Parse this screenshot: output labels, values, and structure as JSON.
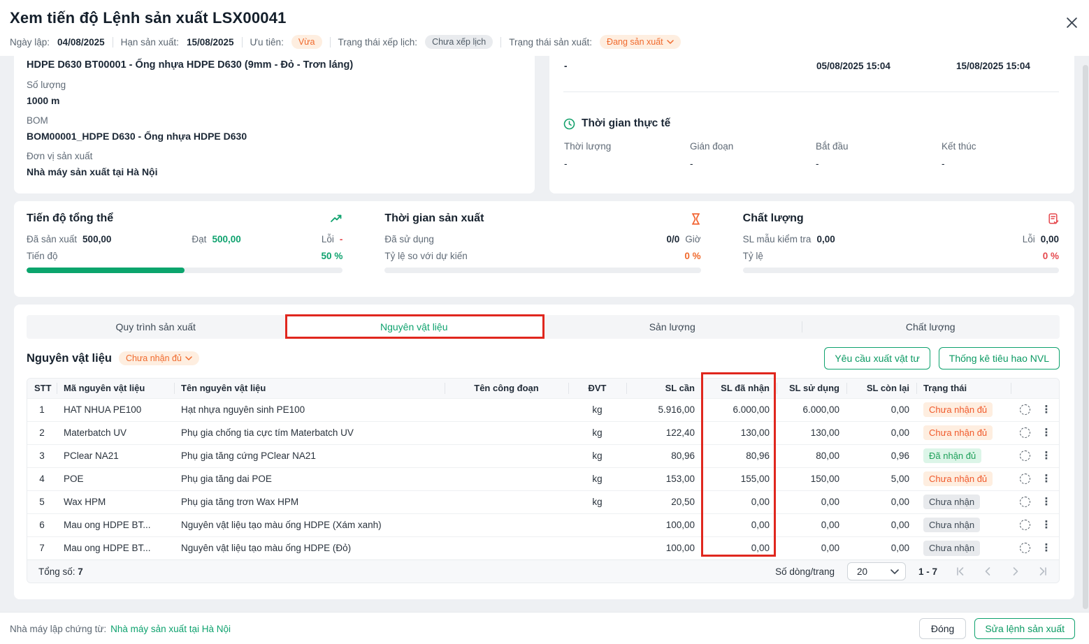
{
  "colors": {
    "accent_green": "#0ea26e",
    "accent_orange": "#f06a2d",
    "accent_red": "#e5484d",
    "annotation_red": "#e0271e",
    "progress_fill": "#0ba56d"
  },
  "header": {
    "title": "Xem tiến độ Lệnh sản xuất LSX00041",
    "meta": {
      "ngay_lap_label": "Ngày lập:",
      "ngay_lap_value": "04/08/2025",
      "han_san_xuat_label": "Hạn sản xuất:",
      "han_san_xuat_value": "15/08/2025",
      "uu_tien_label": "Ưu tiên:",
      "uu_tien_badge": "Vừa",
      "xep_lich_label": "Trạng thái xếp lịch:",
      "xep_lich_badge": "Chưa xếp lịch",
      "san_xuat_label": "Trạng thái sản xuất:",
      "san_xuat_badge": "Đang sản xuất"
    }
  },
  "product_card": {
    "product_line": "HDPE D630 BT00001 - Ống nhựa HDPE D630 (9mm - Đỏ - Trơn láng)",
    "so_luong_label": "Số lượng",
    "so_luong_value": "1000 m",
    "bom_label": "BOM",
    "bom_value": "BOM00001_HDPE D630 - Ống nhựa HDPE D630",
    "don_vi_label": "Đơn vị sản xuất",
    "don_vi_value": "Nhà máy sản xuất tại Hà Nội"
  },
  "time_card": {
    "top_dash": "-",
    "top_start": "05/08/2025 15:04",
    "top_end": "15/08/2025 15:04",
    "section_title": "Thời gian thực tế",
    "cols": [
      {
        "label": "Thời lượng",
        "value": "-"
      },
      {
        "label": "Gián đoạn",
        "value": "-"
      },
      {
        "label": "Bắt đầu",
        "value": "-"
      },
      {
        "label": "Kết thúc",
        "value": "-"
      }
    ]
  },
  "stats": {
    "progress": {
      "title": "Tiến độ tổng thể",
      "produced_label": "Đã sản xuất",
      "produced_value": "500,00",
      "dat_label": "Đạt",
      "dat_value": "500,00",
      "loi_label": "Lỗi",
      "loi_value": "-",
      "tien_do_label": "Tiến độ",
      "percent": "50 %",
      "percent_fill": 50
    },
    "time": {
      "title": "Thời gian sản xuất",
      "used_label": "Đã sử dụng",
      "used_value": "0/0",
      "used_unit": "Giờ",
      "ratio_label": "Tỷ lệ so với dự kiến",
      "percent": "0 %",
      "percent_fill": 0
    },
    "quality": {
      "title": "Chất lượng",
      "sample_label": "SL mẫu kiểm tra",
      "sample_value": "0,00",
      "loi_label": "Lỗi",
      "loi_value": "0,00",
      "ratio_label": "Tỷ lệ",
      "percent": "0 %",
      "percent_fill": 0
    }
  },
  "tabs": [
    {
      "label": "Quy trình sản xuất",
      "active": false
    },
    {
      "label": "Nguyên vật liệu",
      "active": true
    },
    {
      "label": "Sản lượng",
      "active": false
    },
    {
      "label": "Chất lượng",
      "active": false
    }
  ],
  "materials": {
    "heading": "Nguyên vật liệu",
    "heading_badge": "Chưa nhận đủ",
    "request_button": "Yêu cầu xuất vật tư",
    "stats_button": "Thống kê tiêu hao NVL",
    "table": {
      "headers": [
        "STT",
        "Mã nguyên vật liệu",
        "Tên nguyên vật liệu",
        "Tên công đoạn",
        "ĐVT",
        "SL cần",
        "SL đã nhận",
        "SL sử dụng",
        "SL còn lại",
        "Trạng thái"
      ],
      "rows": [
        {
          "stt": "1",
          "code": "HAT NHUA PE100",
          "name": "Hạt nhựa nguyên sinh PE100",
          "stage": "",
          "unit": "kg",
          "required": "5.916,00",
          "received": "6.000,00",
          "used": "6.000,00",
          "remaining": "0,00",
          "status": "Chưa nhận đủ",
          "status_type": "warning"
        },
        {
          "stt": "2",
          "code": "Materbatch UV",
          "name": "Phụ gia chống tia cực tím Materbatch UV",
          "stage": "",
          "unit": "kg",
          "required": "122,40",
          "received": "130,00",
          "used": "130,00",
          "remaining": "0,00",
          "status": "Chưa nhận đủ",
          "status_type": "warning"
        },
        {
          "stt": "3",
          "code": "PClear NA21",
          "name": "Phụ gia tăng cứng PClear NA21",
          "stage": "",
          "unit": "kg",
          "required": "80,96",
          "received": "80,96",
          "used": "80,00",
          "remaining": "0,96",
          "status": "Đã nhận đủ",
          "status_type": "success"
        },
        {
          "stt": "4",
          "code": "POE",
          "name": "Phụ gia tăng dai POE",
          "stage": "",
          "unit": "kg",
          "required": "153,00",
          "received": "155,00",
          "used": "150,00",
          "remaining": "5,00",
          "status": "Chưa nhận đủ",
          "status_type": "warning"
        },
        {
          "stt": "5",
          "code": "Wax HPM",
          "name": "Phụ gia tăng trơn Wax HPM",
          "stage": "",
          "unit": "kg",
          "required": "20,50",
          "received": "0,00",
          "used": "0,00",
          "remaining": "0,00",
          "status": "Chưa nhận",
          "status_type": "neutral"
        },
        {
          "stt": "6",
          "code": "Mau ong HDPE BT...",
          "name": "Nguyên vật liệu tạo màu ống HDPE (Xám xanh)",
          "stage": "",
          "unit": "",
          "required": "100,00",
          "received": "0,00",
          "used": "0,00",
          "remaining": "0,00",
          "status": "Chưa nhận",
          "status_type": "neutral"
        },
        {
          "stt": "7",
          "code": "Mau ong HDPE BT...",
          "name": "Nguyên vật liệu tạo màu ống HDPE (Đỏ)",
          "stage": "",
          "unit": "",
          "required": "100,00",
          "received": "0,00",
          "used": "0,00",
          "remaining": "0,00",
          "status": "Chưa nhận",
          "status_type": "neutral"
        }
      ],
      "footer": {
        "total_label": "Tổng số:",
        "total_value": "7",
        "per_page_label": "Số dòng/trang",
        "per_page_value": "20",
        "range": "1 - 7"
      }
    }
  },
  "footer": {
    "factory_label": "Nhà máy lập chứng từ:",
    "factory_link": "Nhà máy sản xuất tại Hà Nội",
    "close_button": "Đóng",
    "edit_button": "Sửa lệnh sản xuất"
  }
}
